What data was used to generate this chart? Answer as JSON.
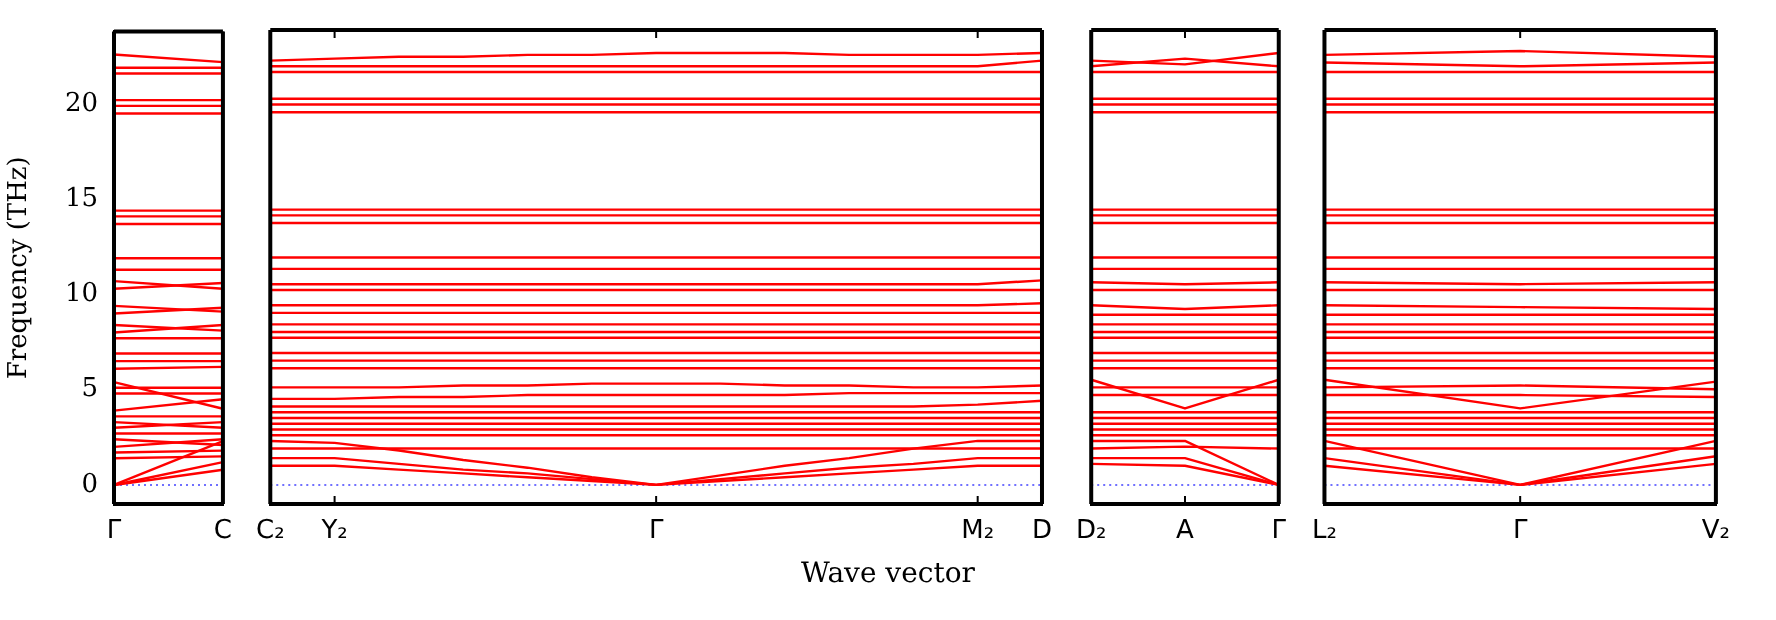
{
  "chart_data": [
    {
      "type": "line",
      "ylabel": "Frequency (THz)",
      "categories": [
        "Γ",
        "C"
      ],
      "ylim": [
        -1,
        23.8
      ],
      "yticks": [
        0,
        5,
        10,
        15,
        20
      ],
      "tick_labels": "xy",
      "marker": "none",
      "line_style": "solid",
      "ref_lines": [
        {
          "axis": "y",
          "value": 0,
          "color": "#7070ff",
          "line_style": "dotted"
        }
      ],
      "series": [
        {
          "color": "#ff0000",
          "values": [
            22.6,
            22.2
          ]
        },
        {
          "color": "#ff0000",
          "values": [
            21.9,
            21.9
          ]
        },
        {
          "color": "#ff0000",
          "values": [
            21.6,
            21.6
          ]
        },
        {
          "color": "#ff0000",
          "values": [
            20.2,
            20.2
          ]
        },
        {
          "color": "#ff0000",
          "values": [
            19.9,
            19.9
          ]
        },
        {
          "color": "#ff0000",
          "values": [
            19.5,
            19.5
          ]
        },
        {
          "color": "#ff0000",
          "values": [
            14.4,
            14.4
          ]
        },
        {
          "color": "#ff0000",
          "values": [
            14.1,
            14.1
          ]
        },
        {
          "color": "#ff0000",
          "values": [
            13.7,
            13.7
          ]
        },
        {
          "color": "#ff0000",
          "values": [
            11.9,
            11.9
          ]
        },
        {
          "color": "#ff0000",
          "values": [
            11.3,
            11.3
          ]
        },
        {
          "color": "#ff0000",
          "values": [
            10.7,
            10.3
          ]
        },
        {
          "color": "#ff0000",
          "values": [
            10.3,
            10.6
          ]
        },
        {
          "color": "#ff0000",
          "values": [
            9.4,
            9.1
          ]
        },
        {
          "color": "#ff0000",
          "values": [
            9.0,
            9.3
          ]
        },
        {
          "color": "#ff0000",
          "values": [
            8.4,
            8.1
          ]
        },
        {
          "color": "#ff0000",
          "values": [
            8.0,
            8.4
          ]
        },
        {
          "color": "#ff0000",
          "values": [
            7.7,
            7.7
          ]
        },
        {
          "color": "#ff0000",
          "values": [
            6.9,
            6.9
          ]
        },
        {
          "color": "#ff0000",
          "values": [
            6.5,
            6.5
          ]
        },
        {
          "color": "#ff0000",
          "values": [
            6.1,
            6.2
          ]
        },
        {
          "color": "#ff0000",
          "values": [
            5.1,
            5.1
          ]
        },
        {
          "color": "#ff0000",
          "values": [
            4.8,
            4.8
          ]
        },
        {
          "color": "#ff0000",
          "values": [
            5.4,
            4.0
          ]
        },
        {
          "color": "#ff0000",
          "values": [
            3.9,
            4.5
          ]
        },
        {
          "color": "#ff0000",
          "values": [
            3.6,
            3.6
          ]
        },
        {
          "color": "#ff0000",
          "values": [
            3.3,
            3.0
          ]
        },
        {
          "color": "#ff0000",
          "values": [
            3.0,
            3.3
          ]
        },
        {
          "color": "#ff0000",
          "values": [
            2.7,
            2.7
          ]
        },
        {
          "color": "#ff0000",
          "values": [
            2.4,
            2.1
          ]
        },
        {
          "color": "#ff0000",
          "values": [
            2.0,
            2.4
          ]
        },
        {
          "color": "#ff0000",
          "values": [
            1.7,
            1.8
          ]
        },
        {
          "color": "#ff0000",
          "values": [
            1.4,
            1.5
          ]
        },
        {
          "color": "#ff0000",
          "values": [
            0,
            1.2
          ]
        },
        {
          "color": "#ff0000",
          "values": [
            0,
            0.8
          ]
        },
        {
          "color": "#ff0000",
          "values": [
            0,
            2.3
          ]
        }
      ]
    },
    {
      "type": "line",
      "xlabel": "Wave vector",
      "categories": [
        "C₂",
        "Y₂",
        null,
        null,
        null,
        null,
        "Γ",
        null,
        null,
        null,
        null,
        "M₂",
        "D"
      ],
      "ylim": [
        -1,
        23.8
      ],
      "yticks": [
        0,
        5,
        10,
        15,
        20
      ],
      "tick_labels": "x",
      "marker": "none",
      "line_style": "solid",
      "ref_lines": [
        {
          "axis": "y",
          "value": 0,
          "color": "#7070ff",
          "line_style": "dotted"
        }
      ],
      "series": [
        {
          "color": "#ff0000",
          "values": [
            22.2,
            22.3,
            22.4,
            22.4,
            22.5,
            22.5,
            22.6,
            22.6,
            22.6,
            22.5,
            22.5,
            22.5,
            22.6
          ]
        },
        {
          "color": "#ff0000",
          "values": [
            21.9,
            21.9,
            21.9,
            21.9,
            21.9,
            21.9,
            21.9,
            21.9,
            21.9,
            21.9,
            21.9,
            21.9,
            22.2
          ]
        },
        {
          "color": "#ff0000",
          "values": [
            21.6,
            21.6,
            21.6,
            21.6,
            21.6,
            21.6,
            21.6,
            21.6,
            21.6,
            21.6,
            21.6,
            21.6,
            21.6
          ]
        },
        {
          "color": "#ff0000",
          "values": [
            20.2,
            20.2,
            20.2,
            20.2,
            20.2,
            20.2,
            20.2,
            20.2,
            20.2,
            20.2,
            20.2,
            20.2,
            20.2
          ]
        },
        {
          "color": "#ff0000",
          "values": [
            19.9,
            19.9,
            19.9,
            19.9,
            19.9,
            19.9,
            19.9,
            19.9,
            19.9,
            19.9,
            19.9,
            19.9,
            19.9
          ]
        },
        {
          "color": "#ff0000",
          "values": [
            19.5,
            19.5,
            19.5,
            19.5,
            19.5,
            19.5,
            19.5,
            19.5,
            19.5,
            19.5,
            19.5,
            19.5,
            19.5
          ]
        },
        {
          "color": "#ff0000",
          "values": [
            14.4,
            14.4,
            14.4,
            14.4,
            14.4,
            14.4,
            14.4,
            14.4,
            14.4,
            14.4,
            14.4,
            14.4,
            14.4
          ]
        },
        {
          "color": "#ff0000",
          "values": [
            14.1,
            14.1,
            14.1,
            14.1,
            14.1,
            14.1,
            14.1,
            14.1,
            14.1,
            14.1,
            14.1,
            14.1,
            14.1
          ]
        },
        {
          "color": "#ff0000",
          "values": [
            13.7,
            13.7,
            13.7,
            13.7,
            13.7,
            13.7,
            13.7,
            13.7,
            13.7,
            13.7,
            13.7,
            13.7,
            13.7
          ]
        },
        {
          "color": "#ff0000",
          "values": [
            11.9,
            11.9,
            11.9,
            11.9,
            11.9,
            11.9,
            11.9,
            11.9,
            11.9,
            11.9,
            11.9,
            11.9,
            11.9
          ]
        },
        {
          "color": "#ff0000",
          "values": [
            11.3,
            11.3,
            11.3,
            11.3,
            11.3,
            11.3,
            11.3,
            11.3,
            11.3,
            11.3,
            11.3,
            11.3,
            11.3
          ]
        },
        {
          "color": "#ff0000",
          "values": [
            10.5,
            10.5,
            10.5,
            10.5,
            10.5,
            10.5,
            10.5,
            10.5,
            10.5,
            10.5,
            10.5,
            10.5,
            10.7
          ]
        },
        {
          "color": "#ff0000",
          "values": [
            10.2,
            10.2,
            10.2,
            10.2,
            10.2,
            10.2,
            10.2,
            10.2,
            10.2,
            10.2,
            10.2,
            10.2,
            10.2
          ]
        },
        {
          "color": "#ff0000",
          "values": [
            9.4,
            9.4,
            9.4,
            9.4,
            9.4,
            9.4,
            9.4,
            9.4,
            9.4,
            9.4,
            9.4,
            9.4,
            9.5
          ]
        },
        {
          "color": "#ff0000",
          "values": [
            9.0,
            9.0,
            9.0,
            9.0,
            9.0,
            9.0,
            9.0,
            9.0,
            9.0,
            9.0,
            9.0,
            9.0,
            9.0
          ]
        },
        {
          "color": "#ff0000",
          "values": [
            8.4,
            8.4,
            8.4,
            8.4,
            8.4,
            8.4,
            8.4,
            8.4,
            8.4,
            8.4,
            8.4,
            8.4,
            8.4
          ]
        },
        {
          "color": "#ff0000",
          "values": [
            8.0,
            8.0,
            8.0,
            8.0,
            8.0,
            8.0,
            8.0,
            8.0,
            8.0,
            8.0,
            8.0,
            8.0,
            8.0
          ]
        },
        {
          "color": "#ff0000",
          "values": [
            7.7,
            7.7,
            7.7,
            7.7,
            7.7,
            7.7,
            7.7,
            7.7,
            7.7,
            7.7,
            7.7,
            7.7,
            7.7
          ]
        },
        {
          "color": "#ff0000",
          "values": [
            6.9,
            6.9,
            6.9,
            6.9,
            6.9,
            6.9,
            6.9,
            6.9,
            6.9,
            6.9,
            6.9,
            6.9,
            6.9
          ]
        },
        {
          "color": "#ff0000",
          "values": [
            6.5,
            6.5,
            6.5,
            6.5,
            6.5,
            6.5,
            6.5,
            6.5,
            6.5,
            6.5,
            6.5,
            6.5,
            6.5
          ]
        },
        {
          "color": "#ff0000",
          "values": [
            6.1,
            6.1,
            6.1,
            6.1,
            6.1,
            6.1,
            6.1,
            6.1,
            6.1,
            6.1,
            6.1,
            6.1,
            6.1
          ]
        },
        {
          "color": "#ff0000",
          "values": [
            5.1,
            5.1,
            5.1,
            5.2,
            5.2,
            5.3,
            5.3,
            5.3,
            5.2,
            5.2,
            5.1,
            5.1,
            5.2
          ]
        },
        {
          "color": "#ff0000",
          "values": [
            4.5,
            4.5,
            4.6,
            4.6,
            4.7,
            4.7,
            4.7,
            4.7,
            4.7,
            4.8,
            4.8,
            4.8,
            4.8
          ]
        },
        {
          "color": "#ff0000",
          "values": [
            4.1,
            4.1,
            4.1,
            4.1,
            4.1,
            4.1,
            4.1,
            4.1,
            4.1,
            4.1,
            4.1,
            4.2,
            4.4
          ]
        },
        {
          "color": "#ff0000",
          "values": [
            3.8,
            3.8,
            3.8,
            3.8,
            3.8,
            3.8,
            3.8,
            3.8,
            3.8,
            3.8,
            3.8,
            3.8,
            3.8
          ]
        },
        {
          "color": "#ff0000",
          "values": [
            3.5,
            3.5,
            3.5,
            3.5,
            3.5,
            3.5,
            3.5,
            3.5,
            3.5,
            3.5,
            3.5,
            3.5,
            3.5
          ]
        },
        {
          "color": "#ff0000",
          "values": [
            3.2,
            3.2,
            3.2,
            3.2,
            3.2,
            3.2,
            3.2,
            3.2,
            3.2,
            3.2,
            3.2,
            3.2,
            3.2
          ]
        },
        {
          "color": "#ff0000",
          "values": [
            2.9,
            2.9,
            2.9,
            2.9,
            2.9,
            2.9,
            2.9,
            2.9,
            2.9,
            2.9,
            2.9,
            2.9,
            2.9
          ]
        },
        {
          "color": "#ff0000",
          "values": [
            2.6,
            2.6,
            2.6,
            2.6,
            2.6,
            2.6,
            2.6,
            2.6,
            2.6,
            2.6,
            2.6,
            2.6,
            2.6
          ]
        },
        {
          "color": "#ff0000",
          "values": [
            1.9,
            1.9,
            1.9,
            1.9,
            1.9,
            1.9,
            1.9,
            1.9,
            1.9,
            1.9,
            1.9,
            1.9,
            1.9
          ]
        },
        {
          "color": "#ff0000",
          "values": [
            1.0,
            1.0,
            0.8,
            0.6,
            0.4,
            0.2,
            0,
            0.2,
            0.4,
            0.6,
            0.8,
            1.0,
            1.0
          ]
        },
        {
          "color": "#ff0000",
          "values": [
            1.4,
            1.4,
            1.1,
            0.8,
            0.6,
            0.3,
            0,
            0.3,
            0.6,
            0.9,
            1.1,
            1.4,
            1.4
          ]
        },
        {
          "color": "#ff0000",
          "values": [
            2.3,
            2.2,
            1.8,
            1.3,
            0.9,
            0.4,
            0,
            0.5,
            1.0,
            1.4,
            1.9,
            2.3,
            2.3
          ]
        }
      ]
    },
    {
      "type": "line",
      "categories": [
        "D₂",
        "A",
        "Γ"
      ],
      "ylim": [
        -1,
        23.8
      ],
      "yticks": [
        0,
        5,
        10,
        15,
        20
      ],
      "tick_labels": "x",
      "marker": "none",
      "line_style": "solid",
      "ref_lines": [
        {
          "axis": "y",
          "value": 0,
          "color": "#7070ff",
          "line_style": "dotted"
        }
      ],
      "series": [
        {
          "color": "#ff0000",
          "values": [
            22.2,
            22.0,
            22.6
          ]
        },
        {
          "color": "#ff0000",
          "values": [
            21.9,
            22.3,
            21.9
          ]
        },
        {
          "color": "#ff0000",
          "values": [
            21.6,
            21.6,
            21.6
          ]
        },
        {
          "color": "#ff0000",
          "values": [
            20.2,
            20.2,
            20.2
          ]
        },
        {
          "color": "#ff0000",
          "values": [
            19.9,
            19.9,
            19.9
          ]
        },
        {
          "color": "#ff0000",
          "values": [
            19.5,
            19.5,
            19.5
          ]
        },
        {
          "color": "#ff0000",
          "values": [
            14.4,
            14.4,
            14.4
          ]
        },
        {
          "color": "#ff0000",
          "values": [
            14.1,
            14.1,
            14.1
          ]
        },
        {
          "color": "#ff0000",
          "values": [
            13.7,
            13.7,
            13.7
          ]
        },
        {
          "color": "#ff0000",
          "values": [
            11.9,
            11.9,
            11.9
          ]
        },
        {
          "color": "#ff0000",
          "values": [
            11.3,
            11.3,
            11.3
          ]
        },
        {
          "color": "#ff0000",
          "values": [
            10.6,
            10.5,
            10.6
          ]
        },
        {
          "color": "#ff0000",
          "values": [
            10.2,
            10.2,
            10.2
          ]
        },
        {
          "color": "#ff0000",
          "values": [
            9.4,
            9.2,
            9.4
          ]
        },
        {
          "color": "#ff0000",
          "values": [
            8.9,
            8.9,
            8.9
          ]
        },
        {
          "color": "#ff0000",
          "values": [
            8.4,
            8.4,
            8.4
          ]
        },
        {
          "color": "#ff0000",
          "values": [
            8.0,
            8.0,
            8.0
          ]
        },
        {
          "color": "#ff0000",
          "values": [
            7.7,
            7.7,
            7.7
          ]
        },
        {
          "color": "#ff0000",
          "values": [
            6.9,
            6.9,
            6.9
          ]
        },
        {
          "color": "#ff0000",
          "values": [
            6.5,
            6.5,
            6.5
          ]
        },
        {
          "color": "#ff0000",
          "values": [
            6.1,
            6.1,
            6.1
          ]
        },
        {
          "color": "#ff0000",
          "values": [
            5.5,
            4.0,
            5.5
          ]
        },
        {
          "color": "#ff0000",
          "values": [
            5.1,
            5.1,
            5.1
          ]
        },
        {
          "color": "#ff0000",
          "values": [
            4.7,
            4.7,
            4.7
          ]
        },
        {
          "color": "#ff0000",
          "values": [
            3.8,
            3.8,
            3.8
          ]
        },
        {
          "color": "#ff0000",
          "values": [
            3.5,
            3.5,
            3.5
          ]
        },
        {
          "color": "#ff0000",
          "values": [
            3.2,
            3.2,
            3.2
          ]
        },
        {
          "color": "#ff0000",
          "values": [
            2.9,
            2.9,
            2.9
          ]
        },
        {
          "color": "#ff0000",
          "values": [
            2.6,
            2.6,
            2.6
          ]
        },
        {
          "color": "#ff0000",
          "values": [
            1.9,
            2.0,
            1.9
          ]
        },
        {
          "color": "#ff0000",
          "values": [
            1.1,
            1.0,
            0
          ]
        },
        {
          "color": "#ff0000",
          "values": [
            1.4,
            1.4,
            0
          ]
        },
        {
          "color": "#ff0000",
          "values": [
            2.3,
            2.3,
            0
          ]
        }
      ]
    },
    {
      "type": "line",
      "categories": [
        "L₂",
        "Γ",
        "V₂"
      ],
      "ylim": [
        -1,
        23.8
      ],
      "yticks": [
        0,
        5,
        10,
        15,
        20
      ],
      "tick_labels": "x",
      "marker": "none",
      "line_style": "solid",
      "ref_lines": [
        {
          "axis": "y",
          "value": 0,
          "color": "#7070ff",
          "line_style": "dotted"
        }
      ],
      "series": [
        {
          "color": "#ff0000",
          "values": [
            22.5,
            22.7,
            22.4
          ]
        },
        {
          "color": "#ff0000",
          "values": [
            22.1,
            21.9,
            22.1
          ]
        },
        {
          "color": "#ff0000",
          "values": [
            21.6,
            21.6,
            21.6
          ]
        },
        {
          "color": "#ff0000",
          "values": [
            20.2,
            20.2,
            20.2
          ]
        },
        {
          "color": "#ff0000",
          "values": [
            19.9,
            19.9,
            19.9
          ]
        },
        {
          "color": "#ff0000",
          "values": [
            19.5,
            19.5,
            19.5
          ]
        },
        {
          "color": "#ff0000",
          "values": [
            14.4,
            14.4,
            14.4
          ]
        },
        {
          "color": "#ff0000",
          "values": [
            14.1,
            14.1,
            14.1
          ]
        },
        {
          "color": "#ff0000",
          "values": [
            13.7,
            13.7,
            13.7
          ]
        },
        {
          "color": "#ff0000",
          "values": [
            11.9,
            11.9,
            11.9
          ]
        },
        {
          "color": "#ff0000",
          "values": [
            11.3,
            11.3,
            11.3
          ]
        },
        {
          "color": "#ff0000",
          "values": [
            10.6,
            10.5,
            10.6
          ]
        },
        {
          "color": "#ff0000",
          "values": [
            10.2,
            10.2,
            10.2
          ]
        },
        {
          "color": "#ff0000",
          "values": [
            9.4,
            9.3,
            9.2
          ]
        },
        {
          "color": "#ff0000",
          "values": [
            8.9,
            8.9,
            8.9
          ]
        },
        {
          "color": "#ff0000",
          "values": [
            8.4,
            8.4,
            8.4
          ]
        },
        {
          "color": "#ff0000",
          "values": [
            8.0,
            8.0,
            8.0
          ]
        },
        {
          "color": "#ff0000",
          "values": [
            7.7,
            7.7,
            7.7
          ]
        },
        {
          "color": "#ff0000",
          "values": [
            6.9,
            6.9,
            6.9
          ]
        },
        {
          "color": "#ff0000",
          "values": [
            6.5,
            6.5,
            6.5
          ]
        },
        {
          "color": "#ff0000",
          "values": [
            6.1,
            6.1,
            6.1
          ]
        },
        {
          "color": "#ff0000",
          "values": [
            5.5,
            4.0,
            5.4
          ]
        },
        {
          "color": "#ff0000",
          "values": [
            5.1,
            5.2,
            5.0
          ]
        },
        {
          "color": "#ff0000",
          "values": [
            4.7,
            4.7,
            4.6
          ]
        },
        {
          "color": "#ff0000",
          "values": [
            3.8,
            3.8,
            3.8
          ]
        },
        {
          "color": "#ff0000",
          "values": [
            3.5,
            3.5,
            3.5
          ]
        },
        {
          "color": "#ff0000",
          "values": [
            3.2,
            3.2,
            3.2
          ]
        },
        {
          "color": "#ff0000",
          "values": [
            2.9,
            2.9,
            2.9
          ]
        },
        {
          "color": "#ff0000",
          "values": [
            2.6,
            2.6,
            2.6
          ]
        },
        {
          "color": "#ff0000",
          "values": [
            1.9,
            1.9,
            1.9
          ]
        },
        {
          "color": "#ff0000",
          "values": [
            1.0,
            0,
            1.1
          ]
        },
        {
          "color": "#ff0000",
          "values": [
            1.4,
            0,
            1.5
          ]
        },
        {
          "color": "#ff0000",
          "values": [
            2.3,
            0,
            2.3
          ]
        }
      ]
    }
  ]
}
